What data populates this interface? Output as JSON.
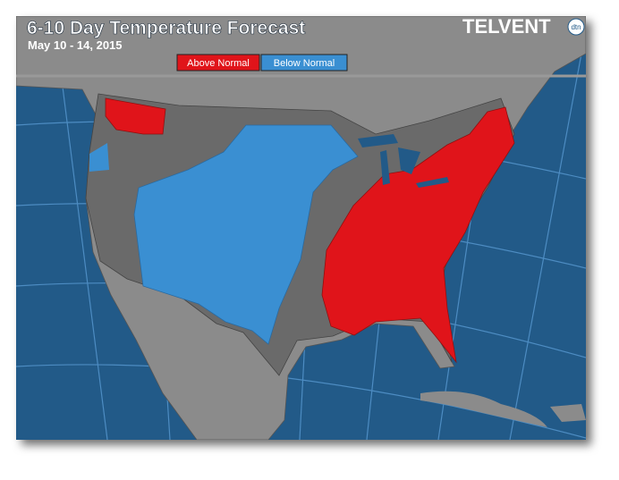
{
  "header": {
    "title": "6-10 Day Temperature Forecast",
    "subtitle": "May 10 - 14, 2015"
  },
  "legend": {
    "items": [
      {
        "label": "Above Normal",
        "color": "#e0141a"
      },
      {
        "label": "Below Normal",
        "color": "#3a8fd2"
      }
    ]
  },
  "logo": {
    "text": "TELVENT",
    "badge": "dtn"
  }
}
